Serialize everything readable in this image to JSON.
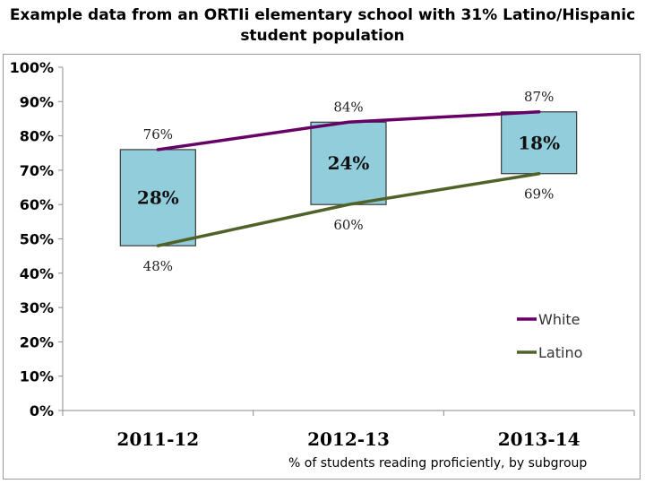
{
  "chart_data": {
    "type": "line",
    "title_line1": "Example data from an ORTIi elementary school with 31% Latino/Hispanic",
    "title_line2": "student population",
    "caption": "% of students reading proficiently, by subgroup",
    "categories": [
      "2011-12",
      "2012-13",
      "2013-14"
    ],
    "ylim": [
      0,
      100
    ],
    "yticks": [
      0,
      10,
      20,
      30,
      40,
      50,
      60,
      70,
      80,
      90,
      100
    ],
    "ytick_suffix": "%",
    "grid": false,
    "legend_position": "bottom-right",
    "series": [
      {
        "name": "White",
        "values": [
          76,
          84,
          87
        ],
        "labels": [
          "76%",
          "84%",
          "87%"
        ],
        "color": "#660066"
      },
      {
        "name": "Latino",
        "values": [
          48,
          60,
          69
        ],
        "labels": [
          "48%",
          "60%",
          "69%"
        ],
        "color": "#4f6228"
      }
    ],
    "gap_labels": [
      "28%",
      "24%",
      "18%"
    ],
    "gap_box_color": "#92cddc",
    "gap_box_border": "#3a3a3a"
  }
}
